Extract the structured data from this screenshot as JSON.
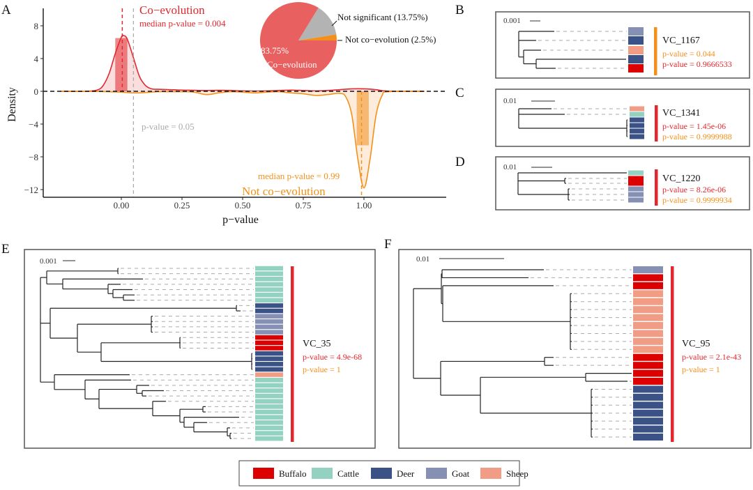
{
  "panel_letters": {
    "a": "A",
    "b": "B",
    "c": "C",
    "d": "D",
    "e": "E",
    "f": "F"
  },
  "colors": {
    "co_evolution": "#E0282E",
    "co_evolution_fill": "#F9D5D5",
    "not_co_evolution": "#F39019",
    "not_co_evolution_fill": "#FDE6D3",
    "not_significant": "#B3B3B3",
    "pie_co_evolution": "#E8605F",
    "threshold": "#AAAAAA"
  },
  "species_colors": {
    "Buffalo": "#DD0000",
    "Cattle": "#93D2C0",
    "Deer": "#3A5285",
    "Goat": "#8690B5",
    "Sheep": "#F19C84"
  },
  "chart_data": {
    "type": "area",
    "xlabel": "p−value",
    "ylabel": "Density",
    "xlim": [
      -0.32,
      1.34
    ],
    "ylim": [
      -13,
      10.5
    ],
    "x_ticks": [
      0,
      0.25,
      0.5,
      0.75,
      1.0
    ],
    "x_tick_labels": [
      "0.00",
      "0.25",
      "0.50",
      "0.75",
      "1.00"
    ],
    "y_ticks": [
      8,
      4,
      0,
      -4,
      -8,
      -12
    ],
    "y_tick_labels": [
      "8",
      "4",
      "0",
      "−4",
      "−8",
      "−12"
    ],
    "grid": false,
    "series": [
      {
        "name": "Co−evolution",
        "x": [
          -0.25,
          -0.15,
          -0.1,
          -0.075,
          -0.05,
          -0.025,
          0,
          0.01,
          0.025,
          0.05,
          0.075,
          0.1,
          0.125,
          0.15,
          0.2,
          0.25,
          0.3,
          0.35,
          0.4,
          0.45,
          0.5,
          0.55,
          0.6,
          0.65,
          0.7,
          0.75,
          0.8,
          0.85,
          0.9,
          0.95,
          1.0,
          1.05,
          1.1,
          1.25
        ],
        "y": [
          0,
          0,
          0.15,
          0.7,
          2.2,
          4.6,
          6.6,
          6.8,
          6.35,
          4.1,
          1.8,
          0.7,
          0.3,
          0.25,
          0.2,
          0.15,
          0.12,
          0.1,
          0.12,
          0.1,
          0.05,
          0.03,
          0.05,
          0.1,
          0.15,
          0.1,
          0.05,
          0.1,
          0.2,
          0.3,
          0.3,
          0.2,
          0.02,
          0
        ],
        "median_label": "median p-value = 0.004",
        "median": 0.004,
        "highlight_bar": {
          "x0": -0.025,
          "x1": 0.025,
          "height": 6.5
        }
      },
      {
        "name": "Not co−evolution",
        "x": [
          -0.25,
          -0.15,
          -0.1,
          -0.05,
          0,
          0.05,
          0.1,
          0.15,
          0.2,
          0.25,
          0.3,
          0.35,
          0.4,
          0.45,
          0.5,
          0.55,
          0.6,
          0.65,
          0.7,
          0.75,
          0.8,
          0.85,
          0.9,
          0.925,
          0.95,
          0.975,
          1.0,
          1.025,
          1.05,
          1.075,
          1.1,
          1.25
        ],
        "y": [
          0,
          0,
          -0.02,
          -0.05,
          -0.1,
          -0.2,
          -0.15,
          -0.05,
          -0.05,
          -0.05,
          -0.1,
          -0.4,
          -0.2,
          -0.05,
          -0.1,
          -0.2,
          -0.1,
          -0.05,
          -0.2,
          -0.3,
          -0.5,
          -0.4,
          -0.25,
          -0.67,
          -2.9,
          -8.3,
          -11.8,
          -8.3,
          -2.9,
          -0.5,
          -0.05,
          0
        ],
        "median_label": "median p-value = 0.99",
        "median": 0.99,
        "highlight_bar": {
          "x0": 0.97,
          "x1": 1.02,
          "height": -6.6
        }
      }
    ],
    "threshold": {
      "x": 0.05,
      "label": "p-value = 0.05"
    },
    "inset_pie": {
      "type": "pie",
      "slices": [
        {
          "name": "Co−evolution",
          "value": 83.75,
          "label": "83.75%"
        },
        {
          "name": "Not significant",
          "value": 13.75,
          "label": "Not significant (13.75%)"
        },
        {
          "name": "Not co−evolution",
          "value": 2.5,
          "label": "Not co−evolution (2.5%)"
        }
      ]
    }
  },
  "trees": {
    "b": {
      "scale": "0.001",
      "vc": "VC_1167",
      "p1": "p-value = 0.044",
      "p2": "p-value = 0.9666533",
      "p1_color": "orange",
      "p2_color": "red",
      "bar_color": "orange",
      "tips": [
        "Goat",
        "Deer",
        "Sheep",
        "Deer",
        "Buffalo"
      ]
    },
    "c": {
      "scale": "0.01",
      "vc": "VC_1341",
      "p1": "p-value = 1.45e-06",
      "p2": "p-value = 0.9999988",
      "p1_color": "red",
      "p2_color": "orange",
      "bar_color": "red",
      "tips": [
        "Sheep",
        "Cattle",
        "Deer",
        "Deer",
        "Deer",
        "Deer"
      ]
    },
    "d": {
      "scale": "0.01",
      "vc": "VC_1220",
      "p1": "p-value = 8.26e-06",
      "p2": "p-value = 0.9999934",
      "p1_color": "red",
      "p2_color": "orange",
      "bar_color": "red",
      "tips": [
        "Cattle",
        "Buffalo",
        "Buffalo",
        "Goat",
        "Goat",
        "Goat"
      ]
    },
    "e": {
      "scale": "0.001",
      "vc": "VC_35",
      "p1": "p-value = 4.9e-68",
      "p2": "p-value = 1",
      "p1_color": "red",
      "p2_color": "orange",
      "bar_color": "red",
      "tips": [
        "Cattle",
        "Cattle",
        "Cattle",
        "Cattle",
        "Cattle",
        "Cattle",
        "Cattle",
        "Deer",
        "Deer",
        "Goat",
        "Goat",
        "Goat",
        "Goat",
        "Buffalo",
        "Buffalo",
        "Buffalo",
        "Deer",
        "Deer",
        "Deer",
        "Deer",
        "Sheep",
        "Cattle",
        "Cattle",
        "Cattle",
        "Cattle",
        "Cattle",
        "Cattle",
        "Cattle",
        "Cattle",
        "Cattle",
        "Cattle",
        "Cattle",
        "Cattle"
      ]
    },
    "f": {
      "scale": "0.01",
      "vc": "VC_95",
      "p1": "p-value = 2.1e-43",
      "p2": "p-value = 1",
      "p1_color": "red",
      "p2_color": "orange",
      "bar_color": "red",
      "tips": [
        "Goat",
        "Buffalo",
        "Buffalo",
        "Sheep",
        "Sheep",
        "Sheep",
        "Sheep",
        "Sheep",
        "Sheep",
        "Sheep",
        "Sheep",
        "Buffalo",
        "Buffalo",
        "Buffalo",
        "Buffalo",
        "Deer",
        "Deer",
        "Deer",
        "Deer",
        "Deer",
        "Deer",
        "Deer"
      ]
    }
  },
  "legend": {
    "items": [
      "Buffalo",
      "Cattle",
      "Deer",
      "Goat",
      "Sheep"
    ]
  }
}
